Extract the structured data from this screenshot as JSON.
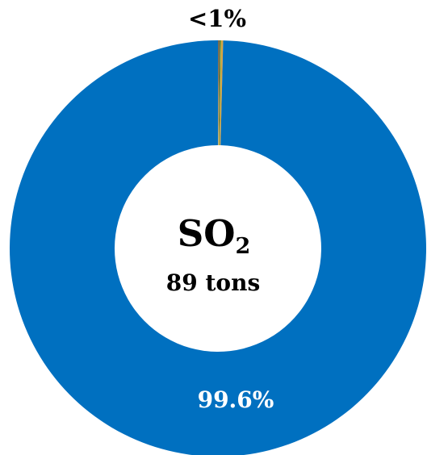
{
  "chart_data": {
    "type": "pie",
    "donut": true,
    "center_title": {
      "base": "SO",
      "subscript": "2"
    },
    "center_subtitle": "89 tons",
    "slices": [
      {
        "label": "99.6%",
        "value": 99.6,
        "color": "#0070C0"
      },
      {
        "label": "<1%",
        "value": 0.15,
        "color": "#1a1a1a"
      },
      {
        "label": "",
        "value": 0.1,
        "color": "#7aa03c"
      },
      {
        "label": "",
        "value": 0.15,
        "color": "#d9a441"
      }
    ],
    "small_slices_label": "<1%"
  }
}
